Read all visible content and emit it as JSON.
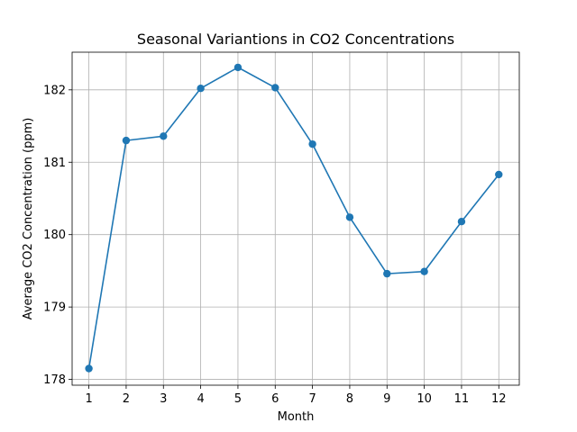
{
  "chart_data": {
    "type": "line",
    "title": "Seasonal Variantions in CO2 Concentrations",
    "xlabel": "Month",
    "ylabel": "Average CO2 Concentration (ppm)",
    "x": [
      1,
      2,
      3,
      4,
      5,
      6,
      7,
      8,
      9,
      10,
      11,
      12
    ],
    "series": [
      {
        "values": [
          178.15,
          181.3,
          181.36,
          182.02,
          182.31,
          182.03,
          181.25,
          180.24,
          179.46,
          179.49,
          180.18,
          180.83
        ],
        "color": "#1f77b4",
        "marker": "circle"
      }
    ],
    "xticks": [
      "1",
      "2",
      "3",
      "4",
      "5",
      "6",
      "7",
      "8",
      "9",
      "10",
      "11",
      "12"
    ],
    "yticks": [
      "178",
      "179",
      "180",
      "181",
      "182"
    ],
    "xlim": [
      0.55,
      12.55
    ],
    "ylim": [
      177.92,
      182.52
    ],
    "grid": true,
    "legend": "none"
  }
}
